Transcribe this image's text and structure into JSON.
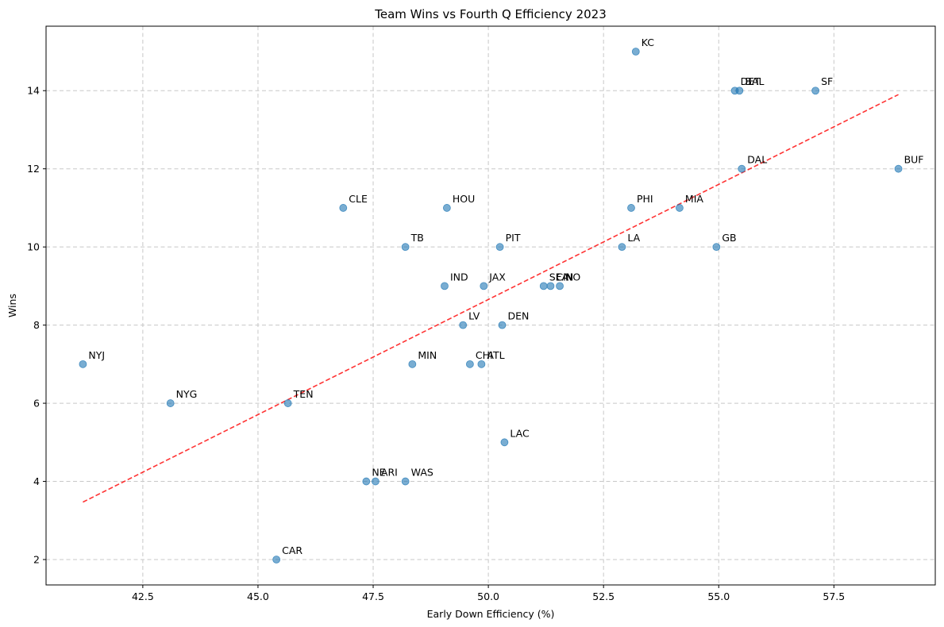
{
  "chart_data": {
    "type": "scatter",
    "title": "Team Wins vs Fourth Q Efficiency 2023",
    "xlabel": "Early Down Efficiency (%)",
    "ylabel": "Wins",
    "xlim": [
      40.4,
      59.7
    ],
    "ylim": [
      1.35,
      15.65
    ],
    "xticks": [
      42.5,
      45.0,
      47.5,
      50.0,
      52.5,
      55.0,
      57.5
    ],
    "xtick_labels": [
      "42.5",
      "45.0",
      "47.5",
      "50.0",
      "52.5",
      "55.0",
      "57.5"
    ],
    "yticks": [
      2,
      4,
      6,
      8,
      10,
      12,
      14
    ],
    "ytick_labels": [
      "2",
      "4",
      "6",
      "8",
      "10",
      "12",
      "14"
    ],
    "grid": true,
    "point_color": "#1f77b4",
    "trend_color": "#ff0000",
    "trendline": {
      "x": [
        41.2,
        58.9
      ],
      "y": [
        3.47,
        13.9
      ]
    },
    "points": [
      {
        "team": "KC",
        "x": 53.2,
        "y": 15
      },
      {
        "team": "DET",
        "x": 55.35,
        "y": 14
      },
      {
        "team": "BAL",
        "x": 55.45,
        "y": 14
      },
      {
        "team": "SF",
        "x": 57.1,
        "y": 14
      },
      {
        "team": "BUF",
        "x": 58.9,
        "y": 12
      },
      {
        "team": "DAL",
        "x": 55.5,
        "y": 12
      },
      {
        "team": "CLE",
        "x": 46.85,
        "y": 11
      },
      {
        "team": "HOU",
        "x": 49.1,
        "y": 11
      },
      {
        "team": "PHI",
        "x": 53.1,
        "y": 11
      },
      {
        "team": "MIA",
        "x": 54.15,
        "y": 11
      },
      {
        "team": "TB",
        "x": 48.2,
        "y": 10
      },
      {
        "team": "PIT",
        "x": 50.25,
        "y": 10
      },
      {
        "team": "LA",
        "x": 52.9,
        "y": 10
      },
      {
        "team": "GB",
        "x": 54.95,
        "y": 10
      },
      {
        "team": "IND",
        "x": 49.05,
        "y": 9
      },
      {
        "team": "JAX",
        "x": 49.9,
        "y": 9
      },
      {
        "team": "SEA",
        "x": 51.2,
        "y": 9
      },
      {
        "team": "CIN",
        "x": 51.35,
        "y": 9
      },
      {
        "team": "NO",
        "x": 51.55,
        "y": 9
      },
      {
        "team": "LV",
        "x": 49.45,
        "y": 8
      },
      {
        "team": "DEN",
        "x": 50.3,
        "y": 8
      },
      {
        "team": "NYJ",
        "x": 41.2,
        "y": 7
      },
      {
        "team": "MIN",
        "x": 48.35,
        "y": 7
      },
      {
        "team": "CHI",
        "x": 49.6,
        "y": 7
      },
      {
        "team": "ATL",
        "x": 49.85,
        "y": 7
      },
      {
        "team": "NYG",
        "x": 43.1,
        "y": 6
      },
      {
        "team": "TEN",
        "x": 45.65,
        "y": 6
      },
      {
        "team": "LAC",
        "x": 50.35,
        "y": 5
      },
      {
        "team": "NE",
        "x": 47.35,
        "y": 4
      },
      {
        "team": "ARI",
        "x": 47.55,
        "y": 4
      },
      {
        "team": "WAS",
        "x": 48.2,
        "y": 4
      },
      {
        "team": "CAR",
        "x": 45.4,
        "y": 2
      }
    ]
  }
}
